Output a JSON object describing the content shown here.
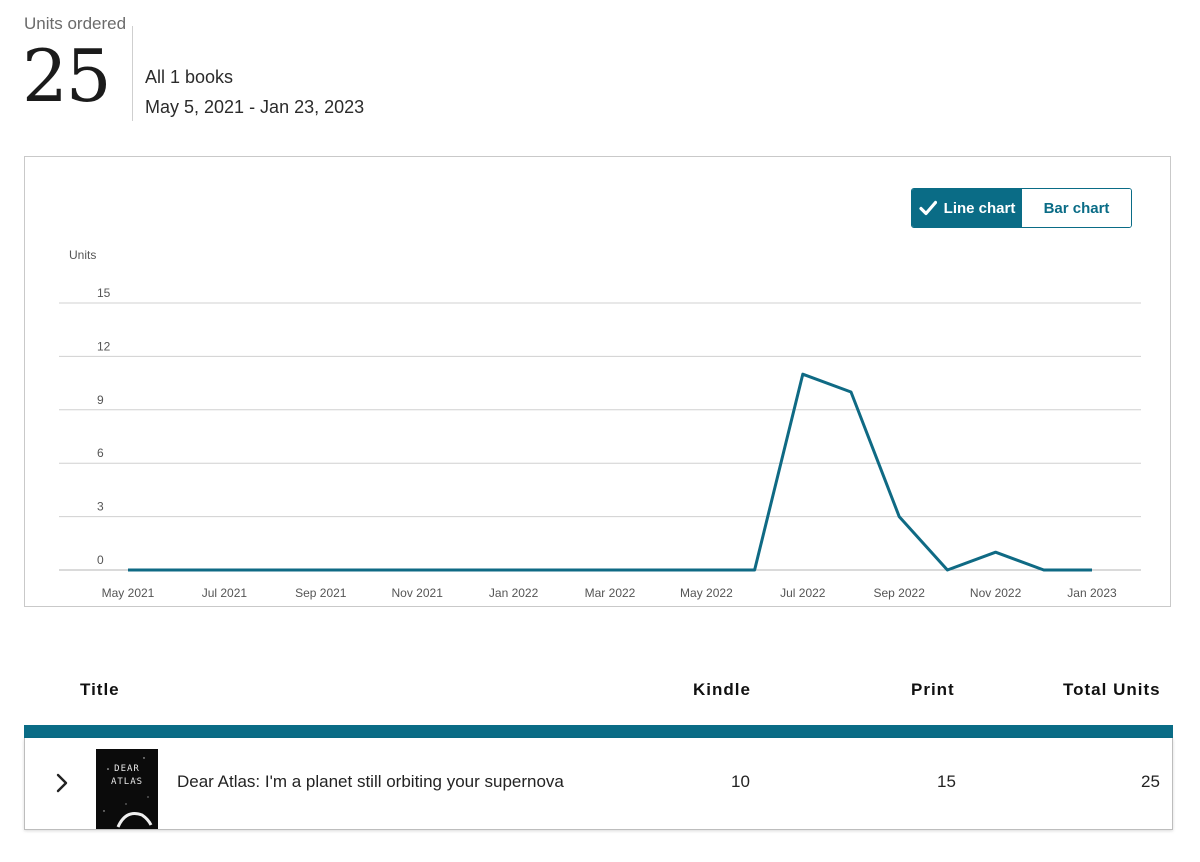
{
  "summary": {
    "label": "Units ordered",
    "value": "25",
    "books": "All 1 books",
    "date_range": "May 5, 2021 - Jan 23, 2023"
  },
  "toggle": {
    "line_label": "Line chart",
    "bar_label": "Bar chart",
    "selected": "Line chart"
  },
  "colors": {
    "accent": "#0a6c86",
    "line": "#0f6a84",
    "grid": "#d0d0d0"
  },
  "chart_data": {
    "type": "line",
    "ylabel": "Units",
    "ylim": [
      0,
      15
    ],
    "yticks": [
      "15",
      "12",
      "9",
      "6",
      "3",
      "0"
    ],
    "xticks": [
      "May 2021",
      "Jul 2021",
      "Sep 2021",
      "Nov 2021",
      "Jan 2022",
      "Mar 2022",
      "May 2022",
      "Jul 2022",
      "Sep 2022",
      "Nov 2022",
      "Jan 2023"
    ],
    "x": [
      "May 2021",
      "Jun 2021",
      "Jul 2021",
      "Aug 2021",
      "Sep 2021",
      "Oct 2021",
      "Nov 2021",
      "Dec 2021",
      "Jan 2022",
      "Feb 2022",
      "Mar 2022",
      "Apr 2022",
      "May 2022",
      "Jun 2022",
      "Jul 2022",
      "Aug 2022",
      "Sep 2022",
      "Oct 2022",
      "Nov 2022",
      "Dec 2022",
      "Jan 2023"
    ],
    "series": [
      {
        "values": [
          0,
          0,
          0,
          0,
          0,
          0,
          0,
          0,
          0,
          0,
          0,
          0,
          0,
          0,
          11,
          10,
          3,
          0,
          1,
          0,
          0
        ]
      }
    ],
    "grid": true
  },
  "table": {
    "headers": {
      "title": "Title",
      "kindle": "Kindle",
      "print": "Print",
      "total": "Total Units"
    },
    "rows": [
      {
        "cover_text": "DEAR ATLAS",
        "title": "Dear Atlas: I'm a planet still orbiting your supernova",
        "kindle": "10",
        "print": "15",
        "total": "25"
      }
    ]
  }
}
